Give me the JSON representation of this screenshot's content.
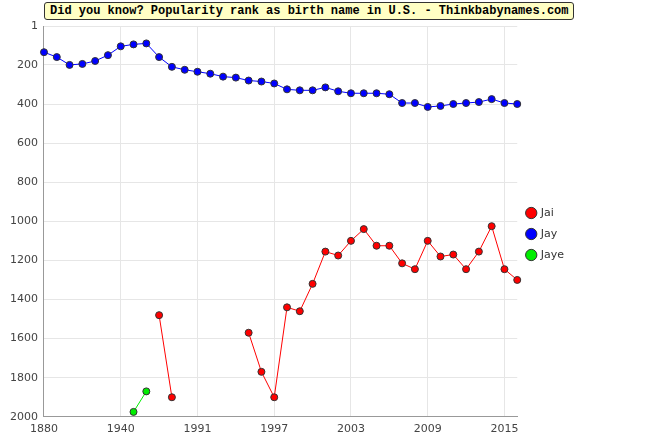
{
  "chart_data": {
    "type": "line",
    "title": "Did you know? Popularity rank as birth name in U.S. - Thinkbabynames.com",
    "categories": [
      1880,
      null,
      null,
      null,
      null,
      null,
      1940,
      null,
      null,
      null,
      null,
      null,
      1991,
      null,
      null,
      null,
      null,
      null,
      1997,
      null,
      null,
      null,
      null,
      null,
      2003,
      null,
      null,
      null,
      null,
      null,
      2009,
      null,
      null,
      null,
      null,
      null,
      2015,
      null
    ],
    "series": [
      {
        "name": "Jai",
        "color": "#ff0000",
        "marker": "circle",
        "line_style": "solid",
        "values": [
          null,
          null,
          null,
          null,
          null,
          null,
          null,
          null,
          null,
          1480,
          1900,
          null,
          null,
          null,
          null,
          null,
          1570,
          1770,
          1900,
          1440,
          1460,
          1320,
          1155,
          1175,
          1100,
          1040,
          1125,
          1125,
          1215,
          1245,
          1100,
          1180,
          1170,
          1245,
          1155,
          1025,
          1245,
          1300
        ]
      },
      {
        "name": "Jay",
        "color": "#0000ff",
        "marker": "circle",
        "line_style": "solid",
        "values": [
          135,
          160,
          200,
          195,
          180,
          150,
          105,
          95,
          90,
          160,
          210,
          225,
          235,
          245,
          260,
          265,
          280,
          285,
          295,
          325,
          330,
          330,
          315,
          335,
          345,
          345,
          345,
          350,
          395,
          395,
          415,
          410,
          400,
          395,
          390,
          375,
          395,
          400
        ]
      },
      {
        "name": "Jaye",
        "color": "#00ee00",
        "marker": "circle",
        "line_style": "solid",
        "values": [
          null,
          null,
          null,
          null,
          null,
          null,
          null,
          1975,
          1870,
          null,
          null,
          null,
          null,
          null,
          null,
          null,
          null,
          null,
          null,
          null,
          null,
          null,
          null,
          null,
          null,
          null,
          null,
          null,
          null,
          null,
          null,
          null,
          null,
          null,
          null,
          null,
          null,
          null
        ]
      }
    ],
    "ylim": [
      2000,
      1
    ],
    "yticks": [
      1,
      200,
      400,
      600,
      800,
      1000,
      1200,
      1400,
      1600,
      1800,
      2000
    ],
    "grid": true,
    "legend": "right"
  }
}
